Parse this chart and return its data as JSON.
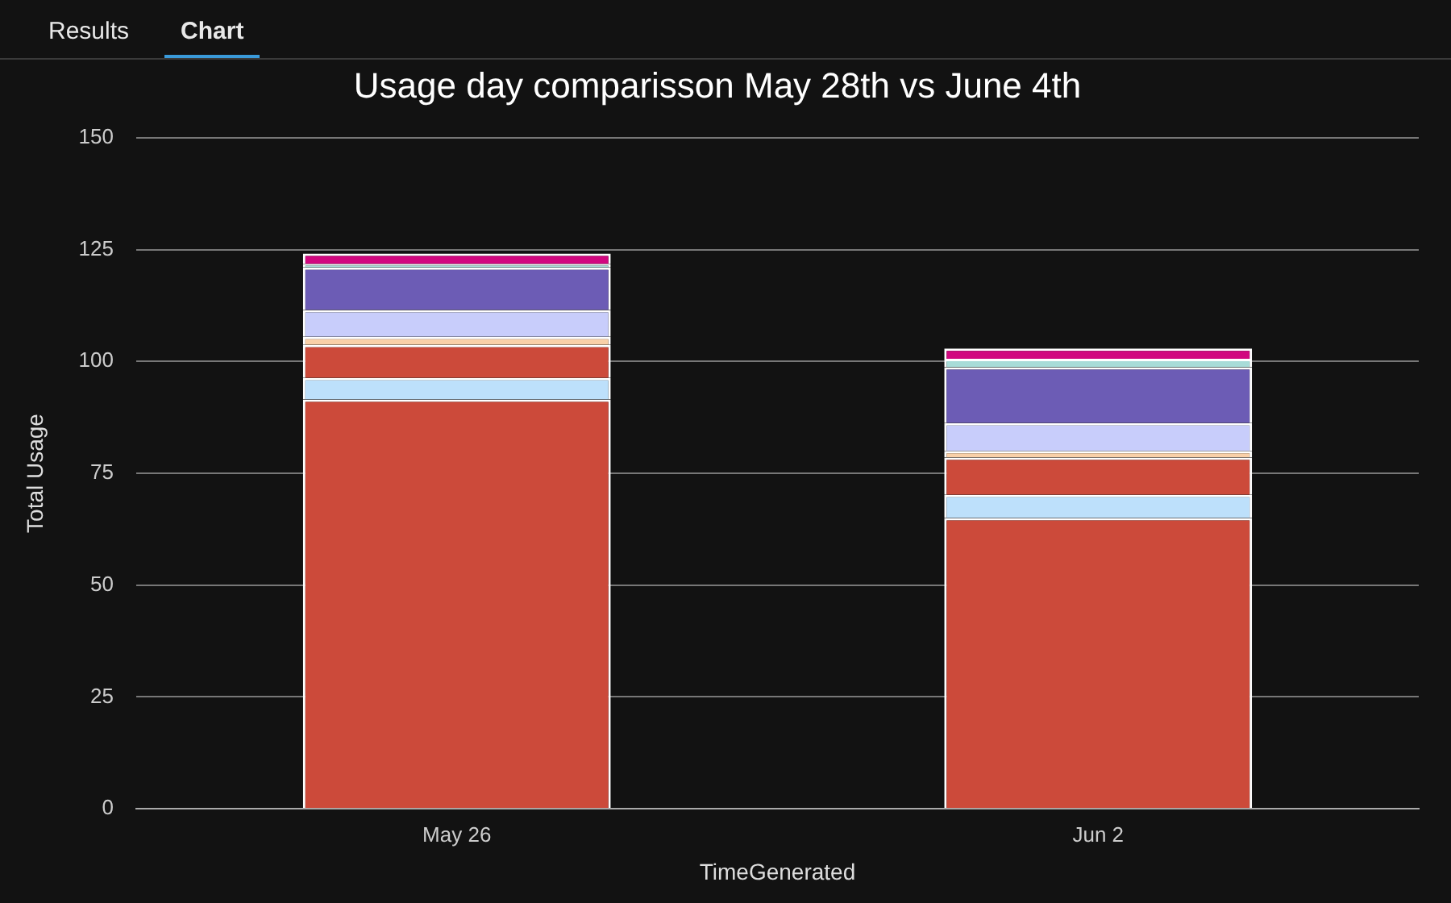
{
  "chart_data": {
    "type": "bar",
    "title": "Usage day comparisson May 28th vs June 4th",
    "xlabel": "TimeGenerated",
    "ylabel": "Total Usage",
    "annotations": [
      "Results",
      "Chart"
    ],
    "categories": [
      "May 26",
      "Jun 2"
    ],
    "stacked": true,
    "ylim": [
      0,
      150
    ],
    "yticks": [
      0,
      25,
      50,
      75,
      100,
      125,
      150
    ],
    "grid": "y",
    "legend": false,
    "series": [
      {
        "color": "#cc4a3a",
        "values": [
          91.5,
          65
        ]
      },
      {
        "color": "#bde0fb",
        "values": [
          4.8,
          5.2
        ]
      },
      {
        "color": "#cc4a3a",
        "values": [
          7.4,
          8.3
        ]
      },
      {
        "color": "#f9d0a8",
        "values": [
          1.8,
          1.5
        ]
      },
      {
        "color": "#c8cdfb",
        "values": [
          6,
          6.2
        ]
      },
      {
        "color": "#6c5cb5",
        "values": [
          9.5,
          12.5
        ]
      },
      {
        "color": "#a8dcd8",
        "values": [
          0.8,
          1.9
        ]
      },
      {
        "color": "#d1087f",
        "values": [
          2.3,
          2.3
        ]
      }
    ]
  }
}
